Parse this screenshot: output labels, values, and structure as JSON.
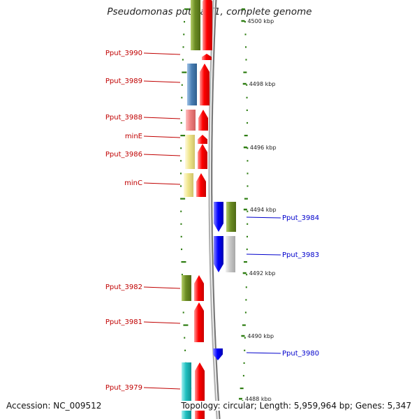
{
  "header": {
    "title": "Pseudomonas putida F1, complete genome"
  },
  "footer": {
    "accession": "Accession: NC_009512",
    "topology": "Topology: circular; Length: 5,959,964 bp; Genes: 5,347"
  },
  "scale": {
    "tick_labels": [
      "4500 kbp",
      "4498 kbp",
      "4496 kbp",
      "4494 kbp",
      "4492 kbp",
      "4490 kbp",
      "4488 kbp"
    ]
  },
  "genes": {
    "left_strand_labels": [
      "Pput_3990",
      "Pput_3989",
      "Pput_3988",
      "minE",
      "Pput_3986",
      "minC",
      "Pput_3982",
      "Pput_3981",
      "Pput_3979"
    ],
    "right_strand_labels": [
      "Pput_3984",
      "Pput_3983",
      "Pput_3980"
    ]
  },
  "colors": {
    "left_label": "#c00000",
    "right_label": "#0000cc",
    "cds_forward": "#ff0000",
    "cds_reverse": "#0000ff",
    "tick": "#2e7d12",
    "backbone": "#9a9a9a",
    "cog_olive": "#6b8c23",
    "cog_steelblue": "#4a7fb5",
    "cog_pink": "#ee8080",
    "cog_khaki": "#f0e68c",
    "cog_gray": "#c8c8c8",
    "cog_cyan": "#20c0c0"
  }
}
